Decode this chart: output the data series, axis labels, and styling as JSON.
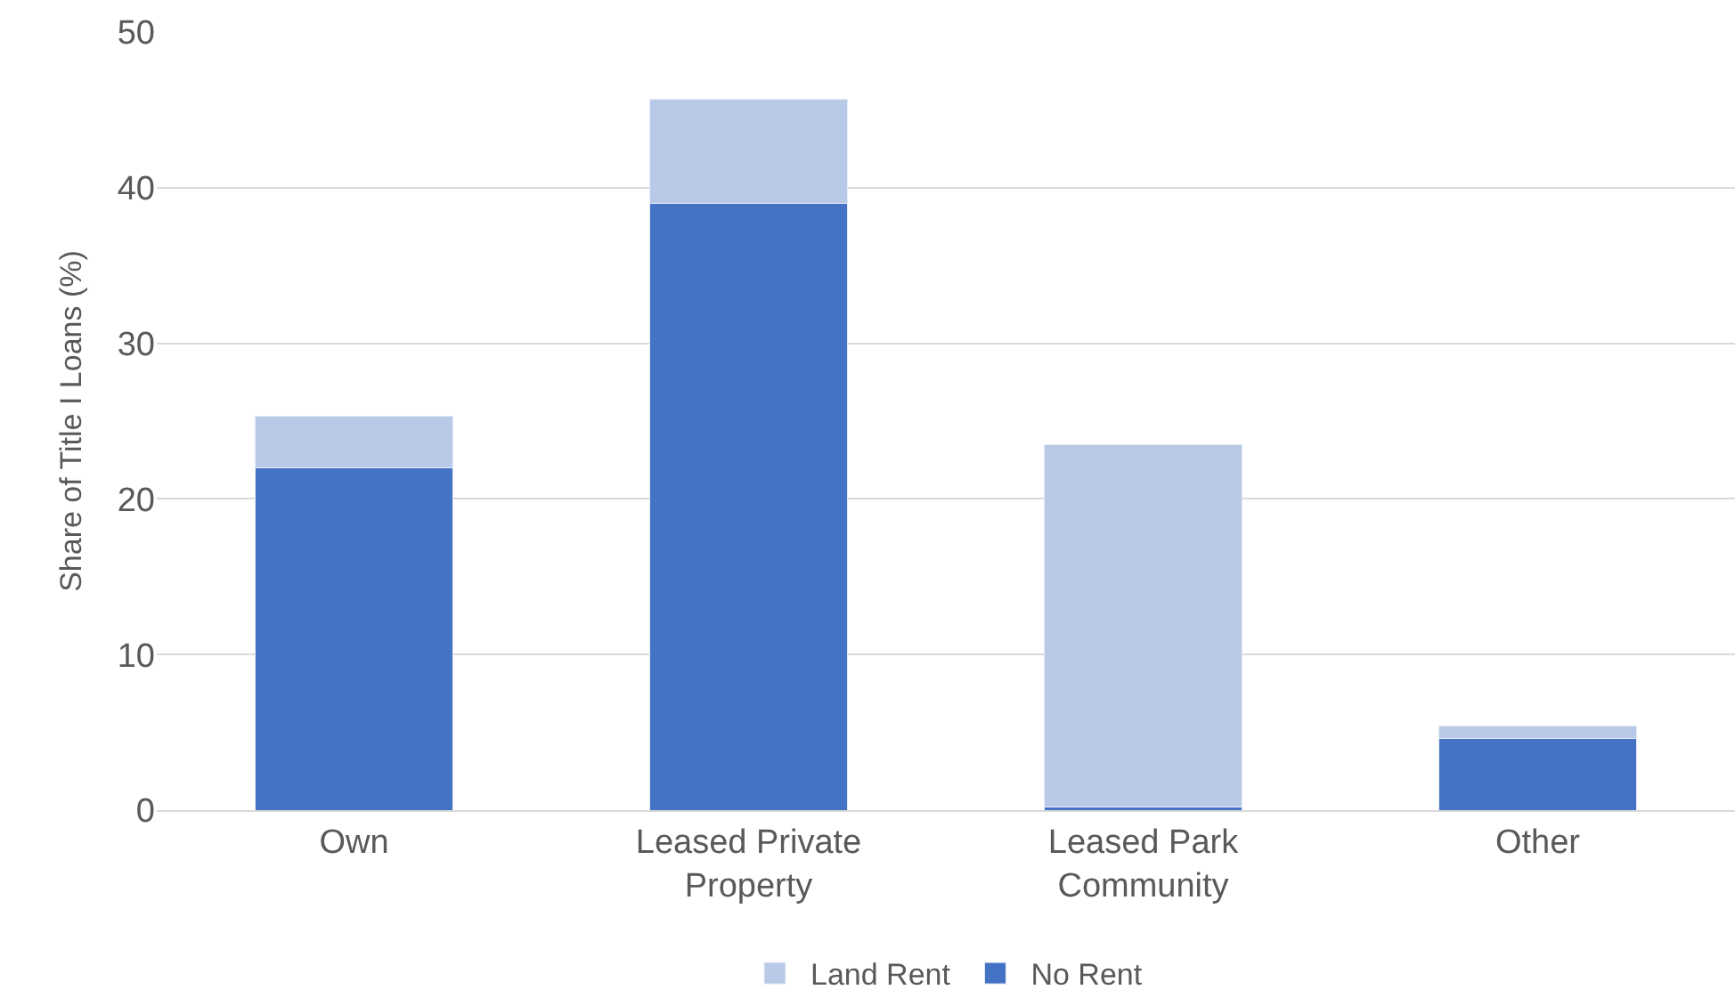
{
  "chart_data": {
    "type": "bar",
    "stacked": true,
    "ylabel": "Share of Title I Loans (%)",
    "categories": [
      "Own",
      "Leased Private\nProperty",
      "Leased Park\nCommunity",
      "Other"
    ],
    "series": [
      {
        "name": "No Rent",
        "color": "#4472c4",
        "values": [
          22.0,
          39.0,
          0.2,
          4.6
        ]
      },
      {
        "name": "Land Rent",
        "color": "#b9c9e8",
        "values": [
          3.3,
          6.7,
          23.3,
          0.8
        ]
      }
    ],
    "ylim": [
      0,
      50
    ],
    "yticks": [
      0,
      10,
      20,
      30,
      40,
      50
    ],
    "grid": "y",
    "legend": "bottom"
  }
}
